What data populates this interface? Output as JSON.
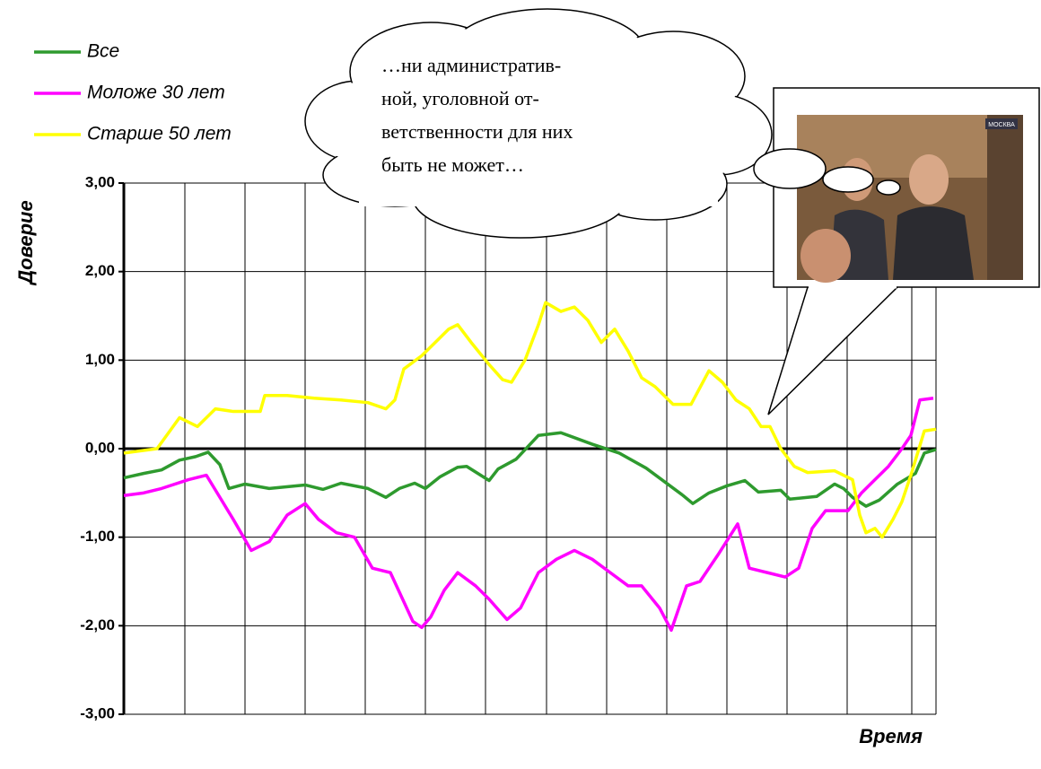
{
  "chart_data": {
    "type": "line",
    "y_label": "Доверие",
    "x_label": "Время",
    "ylim": [
      -3,
      3
    ],
    "yticks": [
      {
        "value": 3,
        "label": "3,00"
      },
      {
        "value": 2,
        "label": "2,00"
      },
      {
        "value": 1,
        "label": "1,00"
      },
      {
        "value": 0,
        "label": "0,00"
      },
      {
        "value": -1,
        "label": "-1,00"
      },
      {
        "value": -2,
        "label": "-2,00"
      },
      {
        "value": -3,
        "label": "-3,00"
      }
    ],
    "xlim": [
      0,
      905
    ],
    "grid": true,
    "legend": "top-left",
    "series": [
      {
        "name": "Все",
        "color": "#2e9a2e",
        "x": [
          0,
          22,
          42,
          62,
          80,
          94,
          107,
          117,
          135,
          162,
          202,
          222,
          242,
          272,
          292,
          307,
          324,
          336,
          352,
          372,
          382,
          407,
          417,
          437,
          462,
          487,
          522,
          552,
          582,
          622,
          634,
          652,
          672,
          692,
          707,
          732,
          742,
          772,
          792,
          802,
          812,
          827,
          842,
          862,
          882,
          892,
          905
        ],
        "values": [
          -0.33,
          -0.28,
          -0.24,
          -0.13,
          -0.09,
          -0.04,
          -0.18,
          -0.45,
          -0.4,
          -0.45,
          -0.41,
          -0.46,
          -0.39,
          -0.45,
          -0.55,
          -0.45,
          -0.39,
          -0.45,
          -0.32,
          -0.21,
          -0.2,
          -0.36,
          -0.23,
          -0.12,
          0.15,
          0.18,
          0.05,
          -0.05,
          -0.22,
          -0.52,
          -0.62,
          -0.5,
          -0.42,
          -0.36,
          -0.49,
          -0.47,
          -0.57,
          -0.54,
          -0.4,
          -0.45,
          -0.55,
          -0.65,
          -0.58,
          -0.4,
          -0.28,
          -0.05,
          -0.01
        ]
      },
      {
        "name": "Моложе 30 лет",
        "color": "#ff00ff",
        "x": [
          0,
          22,
          42,
          72,
          92,
          107,
          122,
          142,
          162,
          182,
          202,
          217,
          237,
          257,
          277,
          297,
          322,
          332,
          342,
          357,
          372,
          392,
          407,
          427,
          442,
          462,
          482,
          502,
          522,
          542,
          562,
          577,
          597,
          610,
          627,
          642,
          662,
          684,
          697,
          717,
          737,
          752,
          767,
          782,
          797,
          807,
          822,
          837,
          852,
          867,
          877,
          887,
          902
        ],
        "values": [
          -0.53,
          -0.5,
          -0.45,
          -0.35,
          -0.3,
          -0.55,
          -0.8,
          -1.15,
          -1.05,
          -0.75,
          -0.62,
          -0.8,
          -0.95,
          -1.0,
          -1.35,
          -1.4,
          -1.95,
          -2.02,
          -1.9,
          -1.6,
          -1.4,
          -1.55,
          -1.7,
          -1.93,
          -1.8,
          -1.4,
          -1.25,
          -1.15,
          -1.25,
          -1.4,
          -1.55,
          -1.55,
          -1.8,
          -2.05,
          -1.55,
          -1.5,
          -1.2,
          -0.85,
          -1.35,
          -1.4,
          -1.45,
          -1.35,
          -0.9,
          -0.7,
          -0.7,
          -0.7,
          -0.5,
          -0.35,
          -0.2,
          0.0,
          0.15,
          0.55,
          0.57
        ]
      },
      {
        "name": "Старше 50 лет",
        "color": "#ffff00",
        "x": [
          0,
          37,
          62,
          82,
          102,
          122,
          152,
          157,
          182,
          212,
          242,
          272,
          292,
          302,
          312,
          332,
          362,
          372,
          387,
          407,
          422,
          432,
          447,
          462,
          470,
          487,
          502,
          517,
          532,
          547,
          562,
          577,
          592,
          612,
          632,
          652,
          667,
          682,
          697,
          710,
          720,
          732,
          747,
          762,
          792,
          812,
          820,
          827,
          837,
          845,
          857,
          867,
          877,
          892,
          905
        ],
        "values": [
          -0.05,
          0.0,
          0.35,
          0.25,
          0.45,
          0.42,
          0.42,
          0.6,
          0.6,
          0.57,
          0.55,
          0.52,
          0.45,
          0.55,
          0.9,
          1.05,
          1.35,
          1.4,
          1.2,
          0.95,
          0.78,
          0.75,
          1.0,
          1.4,
          1.65,
          1.55,
          1.6,
          1.45,
          1.2,
          1.35,
          1.1,
          0.8,
          0.7,
          0.5,
          0.5,
          0.88,
          0.75,
          0.55,
          0.45,
          0.25,
          0.25,
          0.0,
          -0.2,
          -0.27,
          -0.25,
          -0.35,
          -0.75,
          -0.95,
          -0.9,
          -1.0,
          -0.8,
          -0.6,
          -0.3,
          0.2,
          0.22
        ]
      }
    ],
    "annotation": [
      "…ни   административ-",
      "ной, уголовной от-",
      "ветственности для них",
      "быть не может…"
    ],
    "photo_caption": "МОСКВА"
  }
}
